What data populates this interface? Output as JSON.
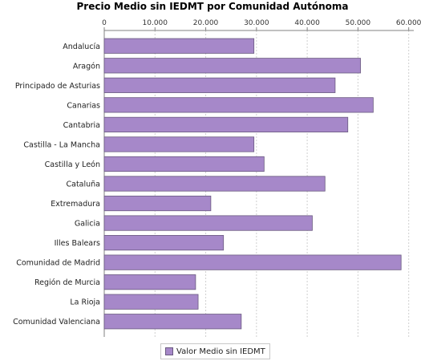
{
  "chart_data": {
    "type": "bar",
    "orientation": "horizontal",
    "title": "Precio Medio sin IEDMT por Comunidad Autónoma",
    "categories": [
      "Andalucía",
      "Aragón",
      "Principado de Asturias",
      "Canarias",
      "Cantabria",
      "Castilla - La Mancha",
      "Castilla y León",
      "Cataluña",
      "Extremadura",
      "Galicia",
      "Illes Balears",
      "Comunidad de Madrid",
      "Región de Murcia",
      "La Rioja",
      "Comunidad Valenciana"
    ],
    "series": [
      {
        "name": "Valor Medio sin IEDMT",
        "values": [
          29500,
          50500,
          45500,
          53000,
          48000,
          29500,
          31500,
          43500,
          21000,
          41000,
          23500,
          58500,
          18000,
          18500,
          27000
        ]
      }
    ],
    "xlim": [
      0,
      61000
    ],
    "ticks": [
      0,
      10000,
      20000,
      30000,
      40000,
      50000,
      60000
    ],
    "tick_labels": [
      "0",
      "10.000",
      "20.000",
      "30.000",
      "40.000",
      "50.000",
      "60.000"
    ],
    "axis_position": "top",
    "grid": true,
    "legend_position": "bottom",
    "colors": {
      "bar_fill": "#a688c9",
      "bar_stroke": "#6a5a80",
      "grid": "#d0d0d0",
      "axis": "#808080"
    }
  }
}
